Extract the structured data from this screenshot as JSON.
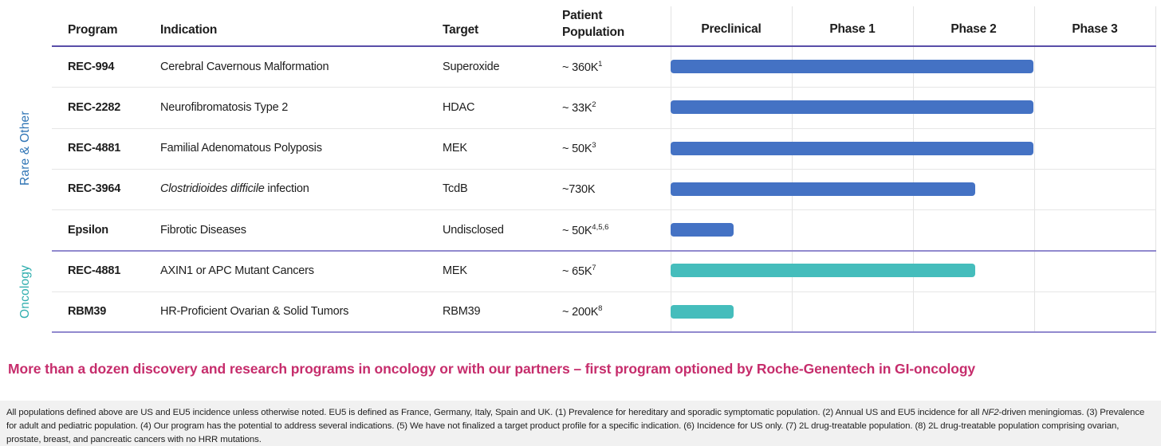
{
  "chart_data": {
    "type": "bar",
    "description": "Clinical pipeline gantt-style bar chart; bar end is fraction of the Preclinical-to-Phase-3 span",
    "columns": [
      "Program",
      "Indication",
      "Target",
      "Patient Population"
    ],
    "phases": [
      "Preclinical",
      "Phase 1",
      "Phase 2",
      "Phase 3"
    ],
    "layout": {
      "grid": true,
      "phase_column_fraction": 0.25
    },
    "rows": [
      {
        "section": "Rare & Other",
        "program": "REC-994",
        "indication": "Cerebral Cavernous Malformation",
        "target": "Superoxide",
        "population": "~ 360K",
        "population_sup": "1",
        "bar": {
          "start": 0,
          "end": 0.75,
          "color": "#4472C4",
          "extends_to": "end of Phase 2"
        }
      },
      {
        "section": "Rare & Other",
        "program": "REC-2282",
        "indication": "Neurofibromatosis Type 2",
        "target": "HDAC",
        "population": "~ 33K",
        "population_sup": "2",
        "bar": {
          "start": 0,
          "end": 0.75,
          "color": "#4472C4",
          "extends_to": "end of Phase 2"
        }
      },
      {
        "section": "Rare & Other",
        "program": "REC-4881",
        "indication": "Familial Adenomatous Polyposis",
        "target": "MEK",
        "population": "~ 50K",
        "population_sup": "3",
        "bar": {
          "start": 0,
          "end": 0.75,
          "color": "#4472C4",
          "extends_to": "end of Phase 2"
        }
      },
      {
        "section": "Rare & Other",
        "program": "REC-3964",
        "indication_italic": "Clostridioides difficile",
        "indication": " infection",
        "target": "TcdB",
        "population": "~730K",
        "population_sup": "",
        "bar": {
          "start": 0,
          "end": 0.63,
          "color": "#4472C4",
          "extends_to": "mid Phase 2"
        }
      },
      {
        "section": "Rare & Other",
        "program": "Epsilon",
        "indication": "Fibrotic Diseases",
        "target": "Undisclosed",
        "population": "~ 50K",
        "population_sup": "4,5,6",
        "bar": {
          "start": 0,
          "end": 0.13,
          "color": "#4472C4",
          "extends_to": "mid Preclinical"
        }
      },
      {
        "section": "Oncology",
        "program": "REC-4881",
        "indication": "AXIN1 or APC Mutant Cancers",
        "target": "MEK",
        "population": "~ 65K",
        "population_sup": "7",
        "bar": {
          "start": 0,
          "end": 0.63,
          "color": "#45BDBC",
          "extends_to": "mid Phase 2"
        }
      },
      {
        "section": "Oncology",
        "program": "RBM39",
        "indication": "HR-Proficient Ovarian & Solid Tumors",
        "target": "RBM39",
        "population": "~ 200K",
        "population_sup": "8",
        "bar": {
          "start": 0,
          "end": 0.13,
          "color": "#45BDBC",
          "extends_to": "mid Preclinical"
        }
      }
    ]
  },
  "sections": [
    {
      "label": "Rare & Other",
      "color": "#2E74B5"
    },
    {
      "label": "Oncology",
      "color": "#2FAEAE"
    }
  ],
  "banner": {
    "text": "More than a dozen discovery and research programs in oncology or with our partners – first program optioned by Roche-Genentech in GI-oncology",
    "color": "#C62D6C"
  },
  "footnotes": {
    "part1": "All populations defined above are US and EU5 incidence unless otherwise noted. EU5 is defined as France, Germany, Italy, Spain and UK. (1) Prevalence for hereditary and sporadic symptomatic population. (2) Annual US and EU5 incidence for all ",
    "nf2": "NF2",
    "part2": "-driven meningiomas. (3) Prevalence for adult and pediatric population. (4) Our program has the potential to address several indications. (5) We have not finalized a target product profile for a specific indication. (6) Incidence for US only. (7) 2L drug-treatable population. (8) 2L drug-treatable population comprising ovarian, prostate, breast, and pancreatic cancers with no HRR mutations."
  },
  "colors": {
    "bar_rare": "#4472C4",
    "bar_oncology": "#45BDBC",
    "header_rule": "#584DA8",
    "section_rule": "#9189CE",
    "footer_bg": "#F1F1F1"
  }
}
